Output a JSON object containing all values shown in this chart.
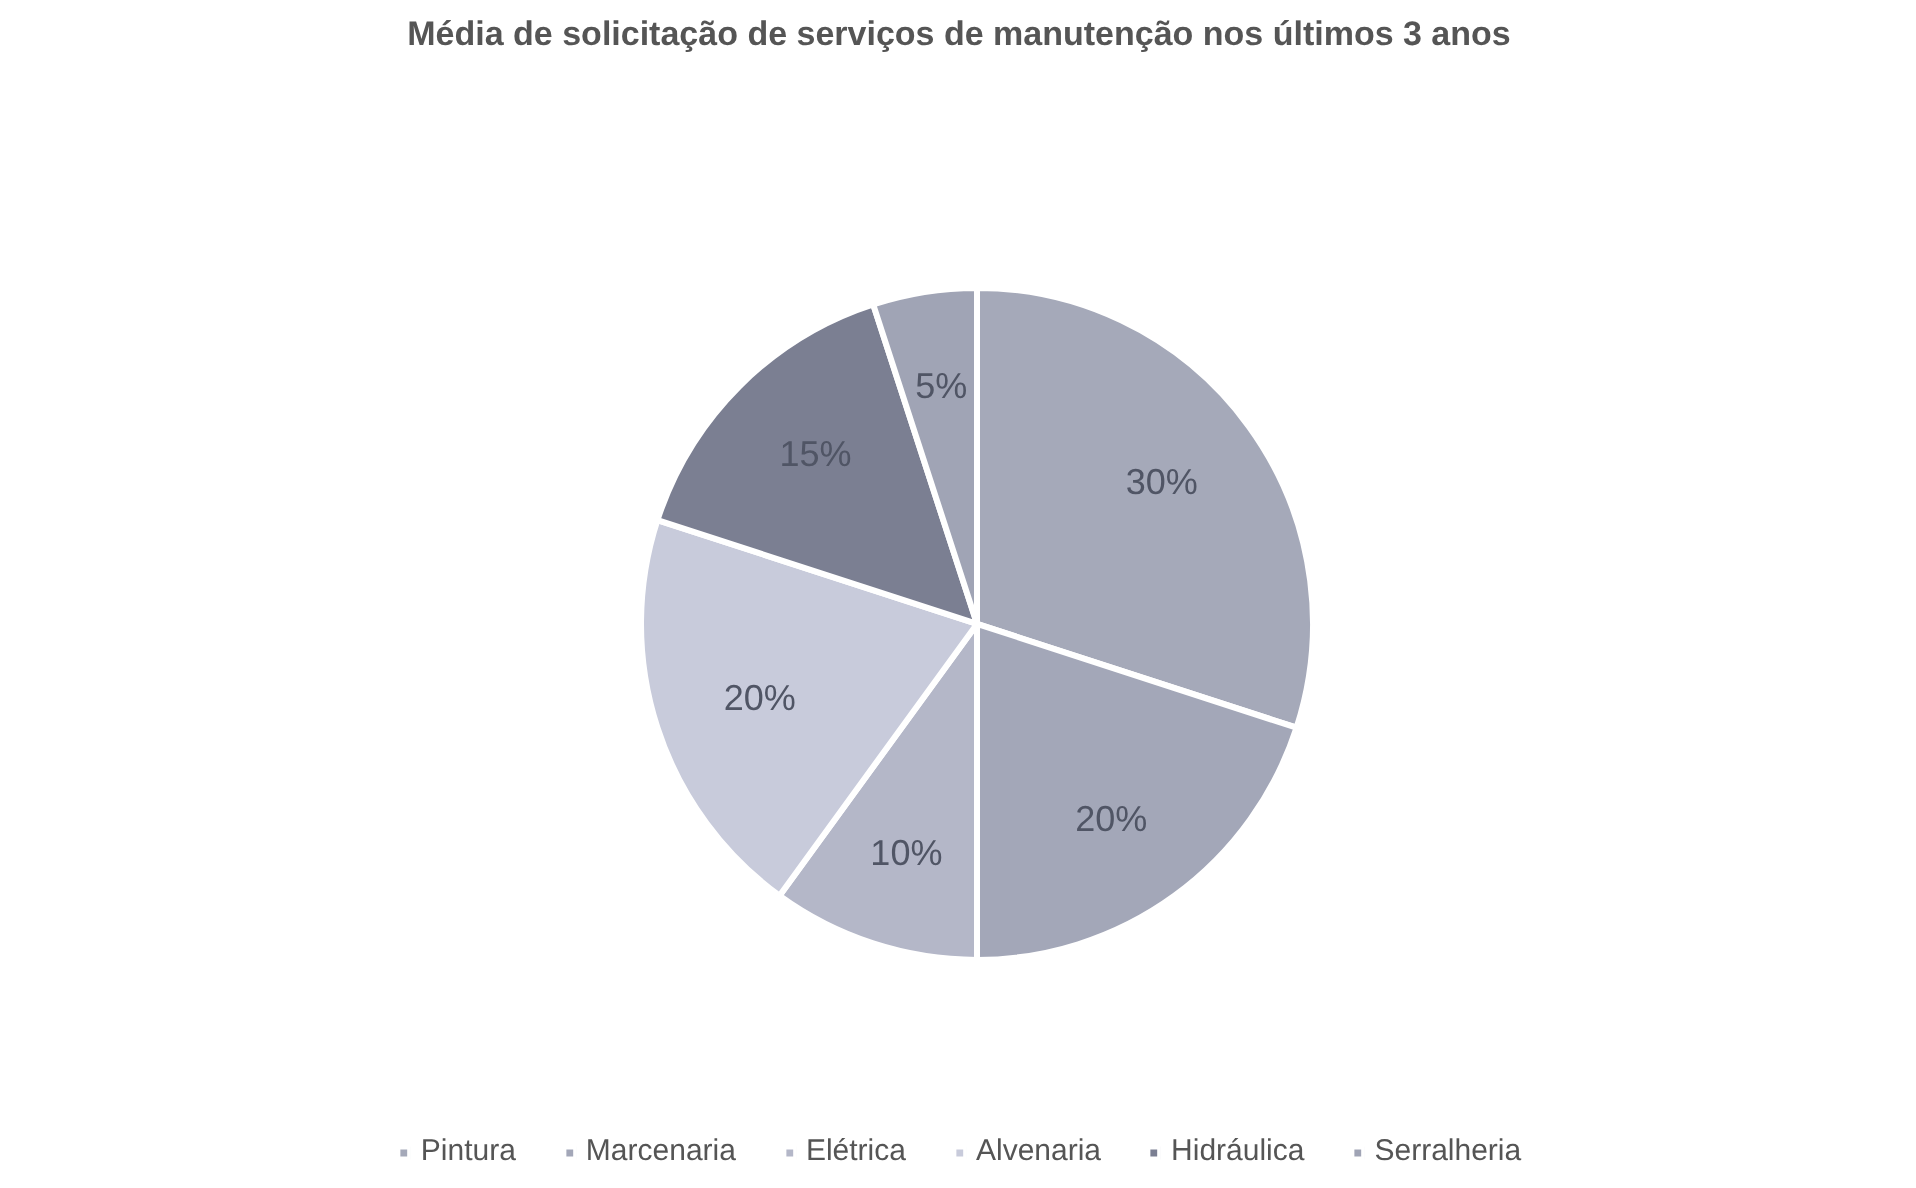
{
  "chart_data": {
    "type": "pie",
    "title": "Média de solicitação de serviços de manutenção nos últimos 3 anos",
    "categories": [
      "Pintura",
      "Marcenaria",
      "Elétrica",
      "Alvenaria",
      "Hidráulica",
      "Serralheria"
    ],
    "values": [
      30,
      20,
      10,
      20,
      15,
      5
    ],
    "colors": [
      "#a5a9b9",
      "#a3a7b8",
      "#b4b7c8",
      "#c8cbdb",
      "#7b7f92",
      "#a0a4b5"
    ],
    "value_labels": [
      "30%",
      "20%",
      "10%",
      "20%",
      "15%",
      "5%"
    ],
    "legend": "bottom"
  }
}
